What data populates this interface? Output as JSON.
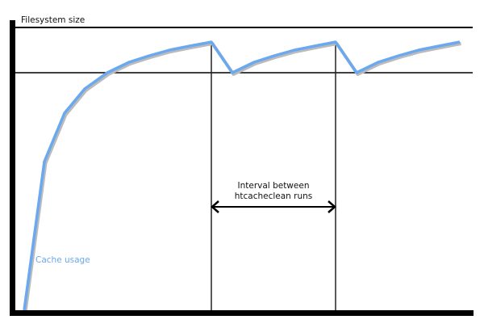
{
  "labels": {
    "y_axis": "Filesystem size",
    "series": "Cache usage",
    "interval_line1": "Interval between",
    "interval_line2": "htcacheclean runs"
  },
  "colors": {
    "cache_usage_line": "#6aa8f0",
    "axes": "#000000"
  }
}
